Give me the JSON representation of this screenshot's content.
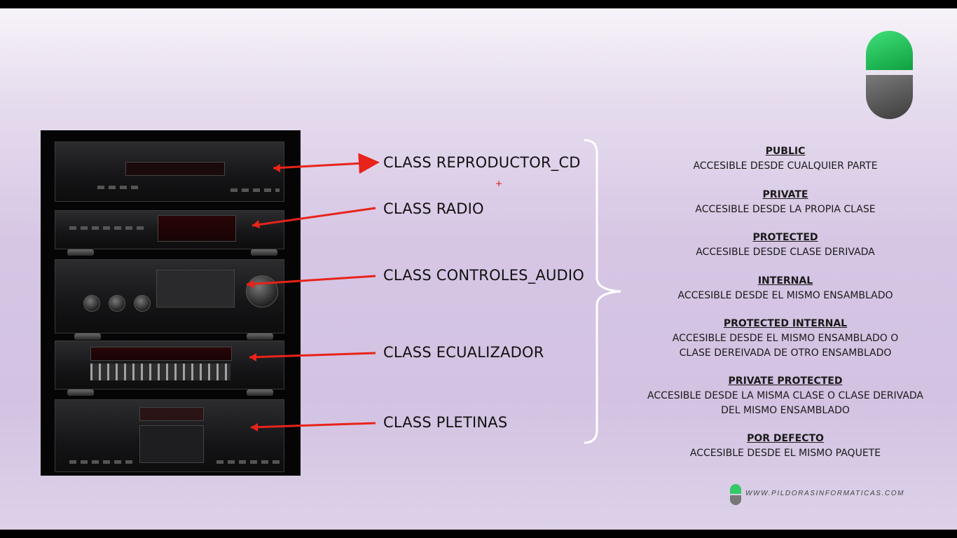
{
  "classes": [
    {
      "label": "CLASS REPRODUCTOR_CD"
    },
    {
      "label": "CLASS RADIO"
    },
    {
      "label": "CLASS CONTROLES_AUDIO"
    },
    {
      "label": "CLASS ECUALIZADOR"
    },
    {
      "label": "CLASS PLETINAS"
    }
  ],
  "modifiers": [
    {
      "name": "PUBLIC",
      "desc": "ACCESIBLE DESDE CUALQUIER PARTE"
    },
    {
      "name": "PRIVATE",
      "desc": "ACCESIBLE DESDE LA PROPIA CLASE"
    },
    {
      "name": "PROTECTED",
      "desc": "ACCESIBLE DESDE CLASE DERIVADA"
    },
    {
      "name": "INTERNAL",
      "desc": "ACCESIBLE DESDE EL MISMO ENSAMBLADO"
    },
    {
      "name": "PROTECTED INTERNAL",
      "desc": "ACCESIBLE DESDE EL MISMO ENSAMBLADO O\nCLASE DEREIVADA DE OTRO ENSAMBLADO"
    },
    {
      "name": "PRIVATE PROTECTED",
      "desc": "ACCESIBLE DESDE LA MISMA CLASE O CLASE DERIVADA\nDEL MISMO ENSAMBLADO"
    },
    {
      "name": "POR DEFECTO",
      "desc": "ACCESIBLE DESDE EL MISMO PAQUETE"
    }
  ],
  "footer": {
    "url": "WWW.PILDORASINFORMATICAS.COM"
  },
  "colors": {
    "arrow": "#e8231a",
    "brace": "#ffffff",
    "logo_green": "#22c45a",
    "logo_gray": "#5a5a5a"
  },
  "icons": {
    "logo": "pill-logo-icon",
    "cursor": "cursor-crosshair-icon"
  }
}
